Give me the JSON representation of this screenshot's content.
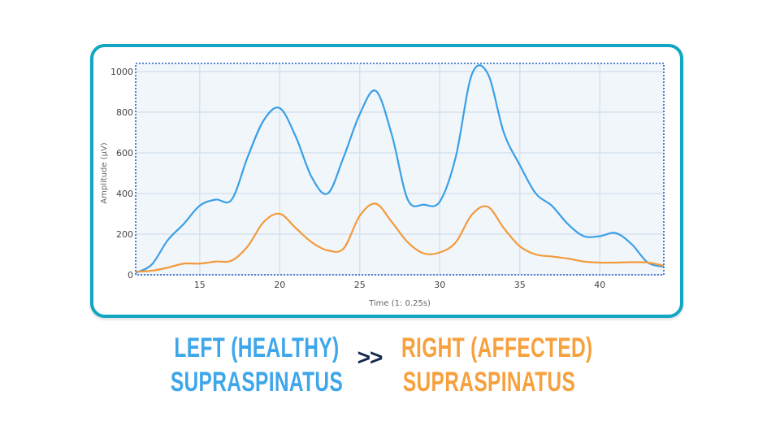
{
  "chart_data": {
    "type": "line",
    "xlabel": "Time (1: 0.25s)",
    "ylabel": "Amplitude (µV)",
    "xlim": [
      11,
      44
    ],
    "ylim": [
      0,
      1040
    ],
    "xticks": [
      15,
      20,
      25,
      30,
      35,
      40
    ],
    "yticks": [
      0,
      200,
      400,
      600,
      800,
      1000
    ],
    "grid": true,
    "x": [
      11,
      12,
      13,
      14,
      15,
      16,
      17,
      18,
      19,
      20,
      21,
      22,
      23,
      24,
      25,
      26,
      27,
      28,
      29,
      30,
      31,
      32,
      33,
      34,
      35,
      36,
      37,
      38,
      39,
      40,
      41,
      42,
      43,
      44
    ],
    "series": [
      {
        "color": "#3a9fe6",
        "values": [
          10,
          50,
          170,
          250,
          340,
          370,
          370,
          580,
          760,
          820,
          680,
          480,
          400,
          580,
          790,
          905,
          690,
          370,
          345,
          360,
          580,
          985,
          990,
          700,
          540,
          400,
          340,
          250,
          190,
          190,
          205,
          150,
          60,
          40
        ]
      },
      {
        "color": "#f39a3c",
        "values": [
          15,
          20,
          35,
          55,
          55,
          65,
          70,
          140,
          260,
          300,
          230,
          160,
          120,
          130,
          290,
          350,
          260,
          160,
          105,
          110,
          160,
          295,
          335,
          230,
          140,
          100,
          90,
          80,
          65,
          60,
          60,
          62,
          60,
          45
        ]
      }
    ]
  },
  "captions": {
    "left_line1": "LEFT (HEALTHY)",
    "left_line2": "SUPRASPINATUS",
    "comparator": ">>",
    "right_line1": "RIGHT (AFFECTED)",
    "right_line2": "SUPRASPINATUS"
  },
  "colors": {
    "frame": "#12a6c2",
    "left": "#3ea6ea",
    "right": "#f7a03e",
    "comparator": "#13294b"
  }
}
